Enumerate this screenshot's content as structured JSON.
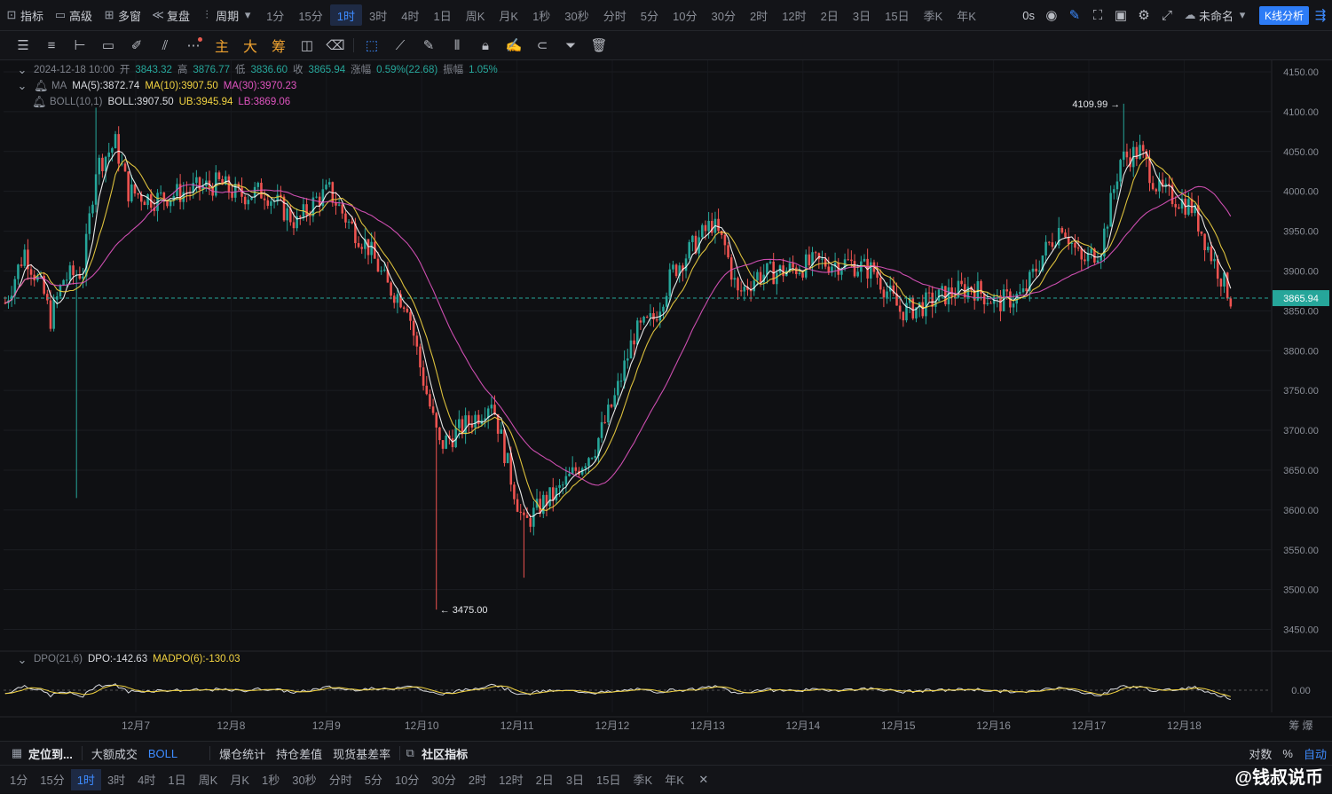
{
  "topbar": {
    "left": [
      {
        "icon": "indicator-icon",
        "label": "指标"
      },
      {
        "icon": "advanced-icon",
        "label": "高级"
      },
      {
        "icon": "multiwindow-icon",
        "label": "多窗"
      },
      {
        "icon": "replay-icon",
        "label": "复盘"
      }
    ],
    "period_label": "周期",
    "periods": [
      "1分",
      "15分",
      "1时",
      "3时",
      "4时",
      "1日",
      "周K",
      "月K",
      "1秒",
      "30秒",
      "分时",
      "5分",
      "10分",
      "30分",
      "2时",
      "12时",
      "2日",
      "3日",
      "15日",
      "季K",
      "年K"
    ],
    "active_period": "1时",
    "countdown": "0s",
    "layout_name": "未命名",
    "k_analysis": "K线分析"
  },
  "toolbar": {
    "tools": [
      "hamburger-icon",
      "align-icon",
      "hline-icon",
      "rect-icon",
      "pen-icon",
      "parallel-icon",
      "more-icon",
      "主",
      "大",
      "筹",
      "measure-icon",
      "clear-icon",
      "select-icon",
      "ruler-icon",
      "brush-icon",
      "candles-icon",
      "lock-icon",
      "note-icon",
      "magnet-icon",
      "filter-icon",
      "trash-icon"
    ]
  },
  "legend": {
    "date": "2024-12-18 10:00",
    "open_label": "开",
    "open": "3843.32",
    "high_label": "高",
    "high": "3876.77",
    "low_label": "低",
    "low": "3836.60",
    "close_label": "收",
    "close": "3865.94",
    "change_label": "涨幅",
    "change": "0.59%(22.68)",
    "amp_label": "振幅",
    "amp": "1.05%",
    "ma_name": "MA",
    "ma5": "MA(5):3872.74",
    "ma10": "MA(10):3907.50",
    "ma30": "MA(30):3970.23",
    "boll_name": "BOLL(10,1)",
    "boll": "BOLL:3907.50",
    "ub": "UB:3945.94",
    "lb": "LB:3869.06"
  },
  "dpo": {
    "name": "DPO(21,6)",
    "dpo": "DPO:-142.63",
    "madpo": "MADPO(6):-130.03"
  },
  "chart_data": {
    "type": "candlestick",
    "ylim": [
      3425,
      4160
    ],
    "y_ticks": [
      4150,
      4100,
      4050,
      4000,
      3950,
      3900,
      3850,
      3800,
      3750,
      3700,
      3650,
      3600,
      3550,
      3500,
      3450
    ],
    "x_labels": [
      "12月7",
      "12月8",
      "12月9",
      "12月10",
      "12月11",
      "12月12",
      "12月13",
      "12月14",
      "12月15",
      "12月16",
      "12月17",
      "12月18"
    ],
    "current_price": "3865.94",
    "max_marker": "4109.99",
    "min_marker": "3475.00",
    "dpo_zero": "0.00",
    "close_path": [
      [
        0,
        3860
      ],
      [
        6,
        3925
      ],
      [
        12,
        3870
      ],
      [
        14,
        3840
      ],
      [
        18,
        3890
      ],
      [
        24,
        3900
      ],
      [
        28,
        4030
      ],
      [
        34,
        4060
      ],
      [
        38,
        4000
      ],
      [
        46,
        3990
      ],
      [
        56,
        4000
      ],
      [
        66,
        4010
      ],
      [
        72,
        3995
      ],
      [
        80,
        4000
      ],
      [
        90,
        3960
      ],
      [
        96,
        3990
      ],
      [
        100,
        4000
      ],
      [
        106,
        3960
      ],
      [
        112,
        3930
      ],
      [
        118,
        3880
      ],
      [
        124,
        3860
      ],
      [
        128,
        3780
      ],
      [
        134,
        3680
      ],
      [
        140,
        3700
      ],
      [
        146,
        3720
      ],
      [
        150,
        3740
      ],
      [
        156,
        3640
      ],
      [
        160,
        3580
      ],
      [
        166,
        3610
      ],
      [
        170,
        3620
      ],
      [
        176,
        3650
      ],
      [
        182,
        3680
      ],
      [
        188,
        3740
      ],
      [
        194,
        3820
      ],
      [
        200,
        3840
      ],
      [
        206,
        3900
      ],
      [
        212,
        3930
      ],
      [
        218,
        3960
      ],
      [
        222,
        3930
      ],
      [
        226,
        3870
      ],
      [
        232,
        3895
      ],
      [
        240,
        3900
      ],
      [
        250,
        3910
      ],
      [
        260,
        3910
      ],
      [
        268,
        3900
      ],
      [
        276,
        3850
      ],
      [
        282,
        3855
      ],
      [
        290,
        3870
      ],
      [
        298,
        3880
      ],
      [
        306,
        3860
      ],
      [
        314,
        3870
      ],
      [
        320,
        3920
      ],
      [
        326,
        3960
      ],
      [
        332,
        3910
      ],
      [
        338,
        3930
      ],
      [
        344,
        4040
      ],
      [
        350,
        4050
      ],
      [
        356,
        4000
      ],
      [
        362,
        3990
      ],
      [
        366,
        3980
      ],
      [
        372,
        3920
      ],
      [
        378,
        3866
      ]
    ]
  },
  "bottom1": {
    "locate": "定位到...",
    "items": [
      "大额成交",
      "BOLL",
      "爆仓统计",
      "持仓差值",
      "现货基差率"
    ],
    "community": "社区指标",
    "right": [
      "筹",
      "爆",
      "对数",
      "%",
      "自动"
    ]
  },
  "bottom2": {
    "periods": [
      "1分",
      "15分",
      "1时",
      "3时",
      "4时",
      "1日",
      "周K",
      "月K",
      "1秒",
      "30秒",
      "分时",
      "5分",
      "10分",
      "30分",
      "2时",
      "12时",
      "2日",
      "3日",
      "15日",
      "季K",
      "年K"
    ],
    "active": "1时"
  },
  "watermark": "@钱叔说币",
  "colors": {
    "up": "#26a69a",
    "down": "#ef5350",
    "ma5": "#ffffff",
    "ma10": "#f2d341",
    "ma30": "#e054c0",
    "accent": "#3d8bff"
  }
}
